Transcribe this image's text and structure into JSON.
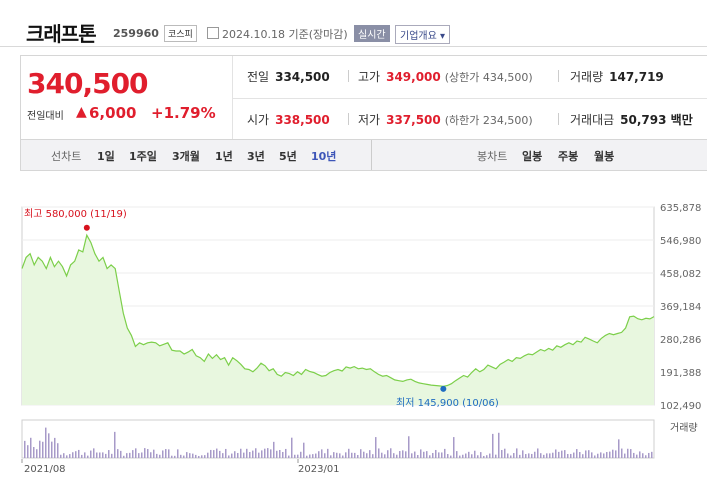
{
  "header": {
    "company_name": "크래프톤",
    "code": "259960",
    "market": "코스피",
    "date": "2024.10.18 기준(장마감)",
    "live_label": "실시간",
    "corp_info_label": "기업개요 ▾"
  },
  "price": {
    "current": "340,500",
    "change_label": "전일대비",
    "change_arrow": "▲",
    "change_value": "6,000",
    "change_pct": "+1.79%",
    "up_color": "#e01e2d"
  },
  "stats": {
    "prev_close_label": "전일",
    "prev_close": "334,500",
    "high_label": "고가",
    "high": "349,000",
    "upper_limit": "(상한가 434,500)",
    "volume_label": "거래량",
    "volume": "147,719",
    "open_label": "시가",
    "open": "338,500",
    "low_label": "저가",
    "low": "337,500",
    "lower_limit": "(하한가 234,500)",
    "amount_label": "거래대금",
    "amount": "50,793 백만"
  },
  "tabs": {
    "line_chart_label": "선차트",
    "periods": [
      "1일",
      "1주일",
      "3개월",
      "1년",
      "3년",
      "5년",
      "10년"
    ],
    "active_period": "10년",
    "candle_label": "봉차트",
    "candles": [
      "일봉",
      "주봉",
      "월봉"
    ]
  },
  "chart_data": {
    "type": "area",
    "y_ticks": [
      "635,878",
      "546,980",
      "458,082",
      "369,184",
      "280,286",
      "191,388",
      "102,490"
    ],
    "ylim": [
      102490,
      635878
    ],
    "x_labels": [
      "2021/08",
      "2023/01"
    ],
    "high_annotation": "최고 580,000 (11/19)",
    "high_value": 580000,
    "low_annotation": "최저 145,900 (10/06)",
    "low_value": 145900,
    "volume_label": "거래량",
    "line_color": "#7ccf4a",
    "fill_color": "#e8f7df",
    "high_color": "#d7111d",
    "low_color": "#1f6cc1",
    "values": [
      470000,
      500000,
      510000,
      480000,
      500000,
      490000,
      470000,
      500000,
      475000,
      490000,
      475000,
      450000,
      480000,
      490000,
      520000,
      515000,
      560000,
      540000,
      510000,
      490000,
      500000,
      470000,
      480000,
      470000,
      410000,
      350000,
      310000,
      290000,
      260000,
      270000,
      265000,
      270000,
      272000,
      270000,
      262000,
      266000,
      270000,
      250000,
      248000,
      248000,
      240000,
      245000,
      252000,
      235000,
      230000,
      220000,
      240000,
      228000,
      238000,
      225000,
      230000,
      210000,
      230000,
      222000,
      212000,
      200000,
      198000,
      192000,
      202000,
      215000,
      208000,
      195000,
      200000,
      185000,
      180000,
      190000,
      187000,
      182000,
      192000,
      185000,
      198000,
      193000,
      190000,
      185000,
      180000,
      182000,
      190000,
      195000,
      198000,
      194000,
      205000,
      202000,
      206000,
      200000,
      202000,
      198000,
      200000,
      192000,
      185000,
      180000,
      182000,
      176000,
      170000,
      168000,
      166000,
      170000,
      172000,
      166000,
      162000,
      160000,
      158000,
      156000,
      155000,
      154000,
      153000,
      155000,
      160000,
      168000,
      175000,
      182000,
      178000,
      190000,
      200000,
      192000,
      198000,
      210000,
      205000,
      200000,
      212000,
      218000,
      225000,
      220000,
      230000,
      228000,
      235000,
      240000,
      238000,
      245000,
      252000,
      248000,
      255000,
      250000,
      262000,
      258000,
      265000,
      270000,
      265000,
      275000,
      272000,
      285000,
      280000,
      275000,
      270000,
      282000,
      290000,
      295000,
      292000,
      295000,
      298000,
      310000,
      340000,
      342000,
      335000,
      332000,
      336000,
      334500,
      340500
    ]
  }
}
